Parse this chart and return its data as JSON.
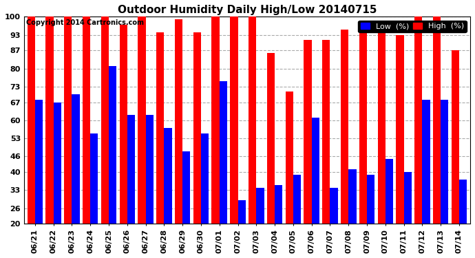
{
  "title": "Outdoor Humidity Daily High/Low 20140715",
  "copyright": "Copyright 2014 Cartronics.com",
  "legend_low": "Low  (%)",
  "legend_high": "High  (%)",
  "dates": [
    "06/21",
    "06/22",
    "06/23",
    "06/24",
    "06/25",
    "06/26",
    "06/27",
    "06/28",
    "06/29",
    "06/30",
    "07/01",
    "07/02",
    "07/03",
    "07/04",
    "07/05",
    "07/06",
    "07/07",
    "07/08",
    "07/09",
    "07/10",
    "07/11",
    "07/12",
    "07/13",
    "07/14"
  ],
  "high": [
    100,
    100,
    100,
    100,
    100,
    97,
    100,
    94,
    99,
    94,
    100,
    100,
    100,
    86,
    71,
    91,
    91,
    95,
    94,
    94,
    93,
    100,
    100,
    87
  ],
  "low": [
    68,
    67,
    70,
    55,
    81,
    62,
    62,
    57,
    48,
    55,
    75,
    29,
    34,
    35,
    39,
    61,
    34,
    41,
    39,
    45,
    40,
    68,
    68,
    37
  ],
  "ylim": [
    20,
    100
  ],
  "yticks": [
    20,
    26,
    33,
    40,
    46,
    53,
    60,
    67,
    73,
    80,
    87,
    93,
    100
  ],
  "bar_color_high": "#ff0000",
  "bar_color_low": "#0000ff",
  "bg_color": "#ffffff",
  "grid_color": "#aaaaaa",
  "title_fontsize": 11,
  "tick_fontsize": 8,
  "legend_fontsize": 8,
  "ymin": 20
}
